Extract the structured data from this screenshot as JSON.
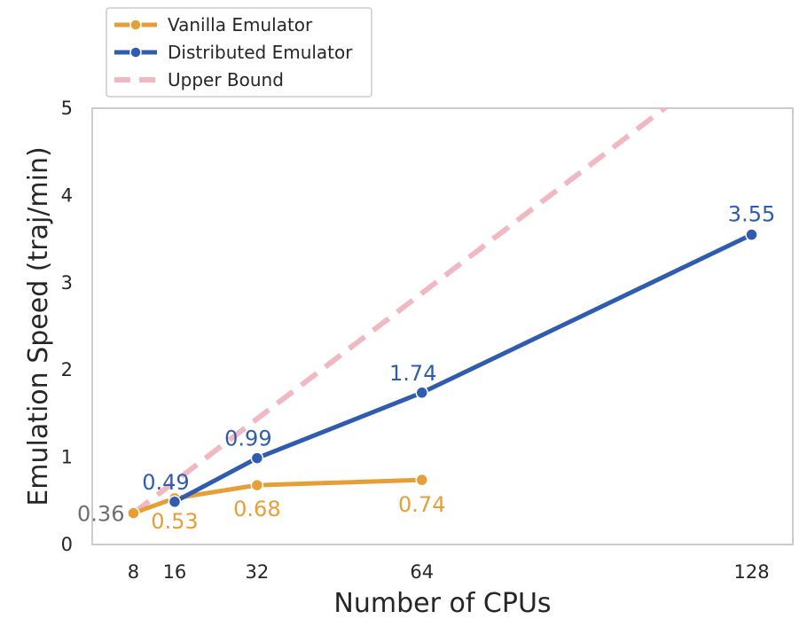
{
  "chart_data": {
    "type": "line",
    "xlabel": "Number of CPUs",
    "ylabel": "Emulation Speed (traj/min)",
    "x_ticks": [
      8,
      16,
      32,
      64,
      128
    ],
    "y_ticks": [
      0,
      1,
      2,
      3,
      4,
      5
    ],
    "xlim": [
      0,
      136
    ],
    "ylim": [
      0,
      5
    ],
    "grid": false,
    "legend": "top-left, above plot",
    "series": [
      {
        "name": "Vanilla Emulator",
        "color": "#e59f36",
        "style": "solid-marker",
        "x": [
          8,
          16,
          32,
          64
        ],
        "y": [
          0.36,
          0.53,
          0.68,
          0.74
        ],
        "labels": [
          "",
          "0.53",
          "0.68",
          "0.74"
        ]
      },
      {
        "name": "Distributed Emulator",
        "color": "#2f5caf",
        "style": "solid-marker",
        "x": [
          16,
          32,
          64,
          128
        ],
        "y": [
          0.49,
          0.99,
          1.74,
          3.55
        ],
        "labels": [
          "0.49",
          "0.99",
          "1.74",
          "3.55"
        ]
      },
      {
        "name": "Upper Bound",
        "color": "#f2b8c1",
        "style": "dashed",
        "x": [
          8,
          136
        ],
        "y": [
          0.36,
          6.12
        ]
      }
    ],
    "annotations": [
      {
        "text": "0.36",
        "x": 8,
        "y": 0.36,
        "color": "#6f6f6f"
      }
    ]
  }
}
